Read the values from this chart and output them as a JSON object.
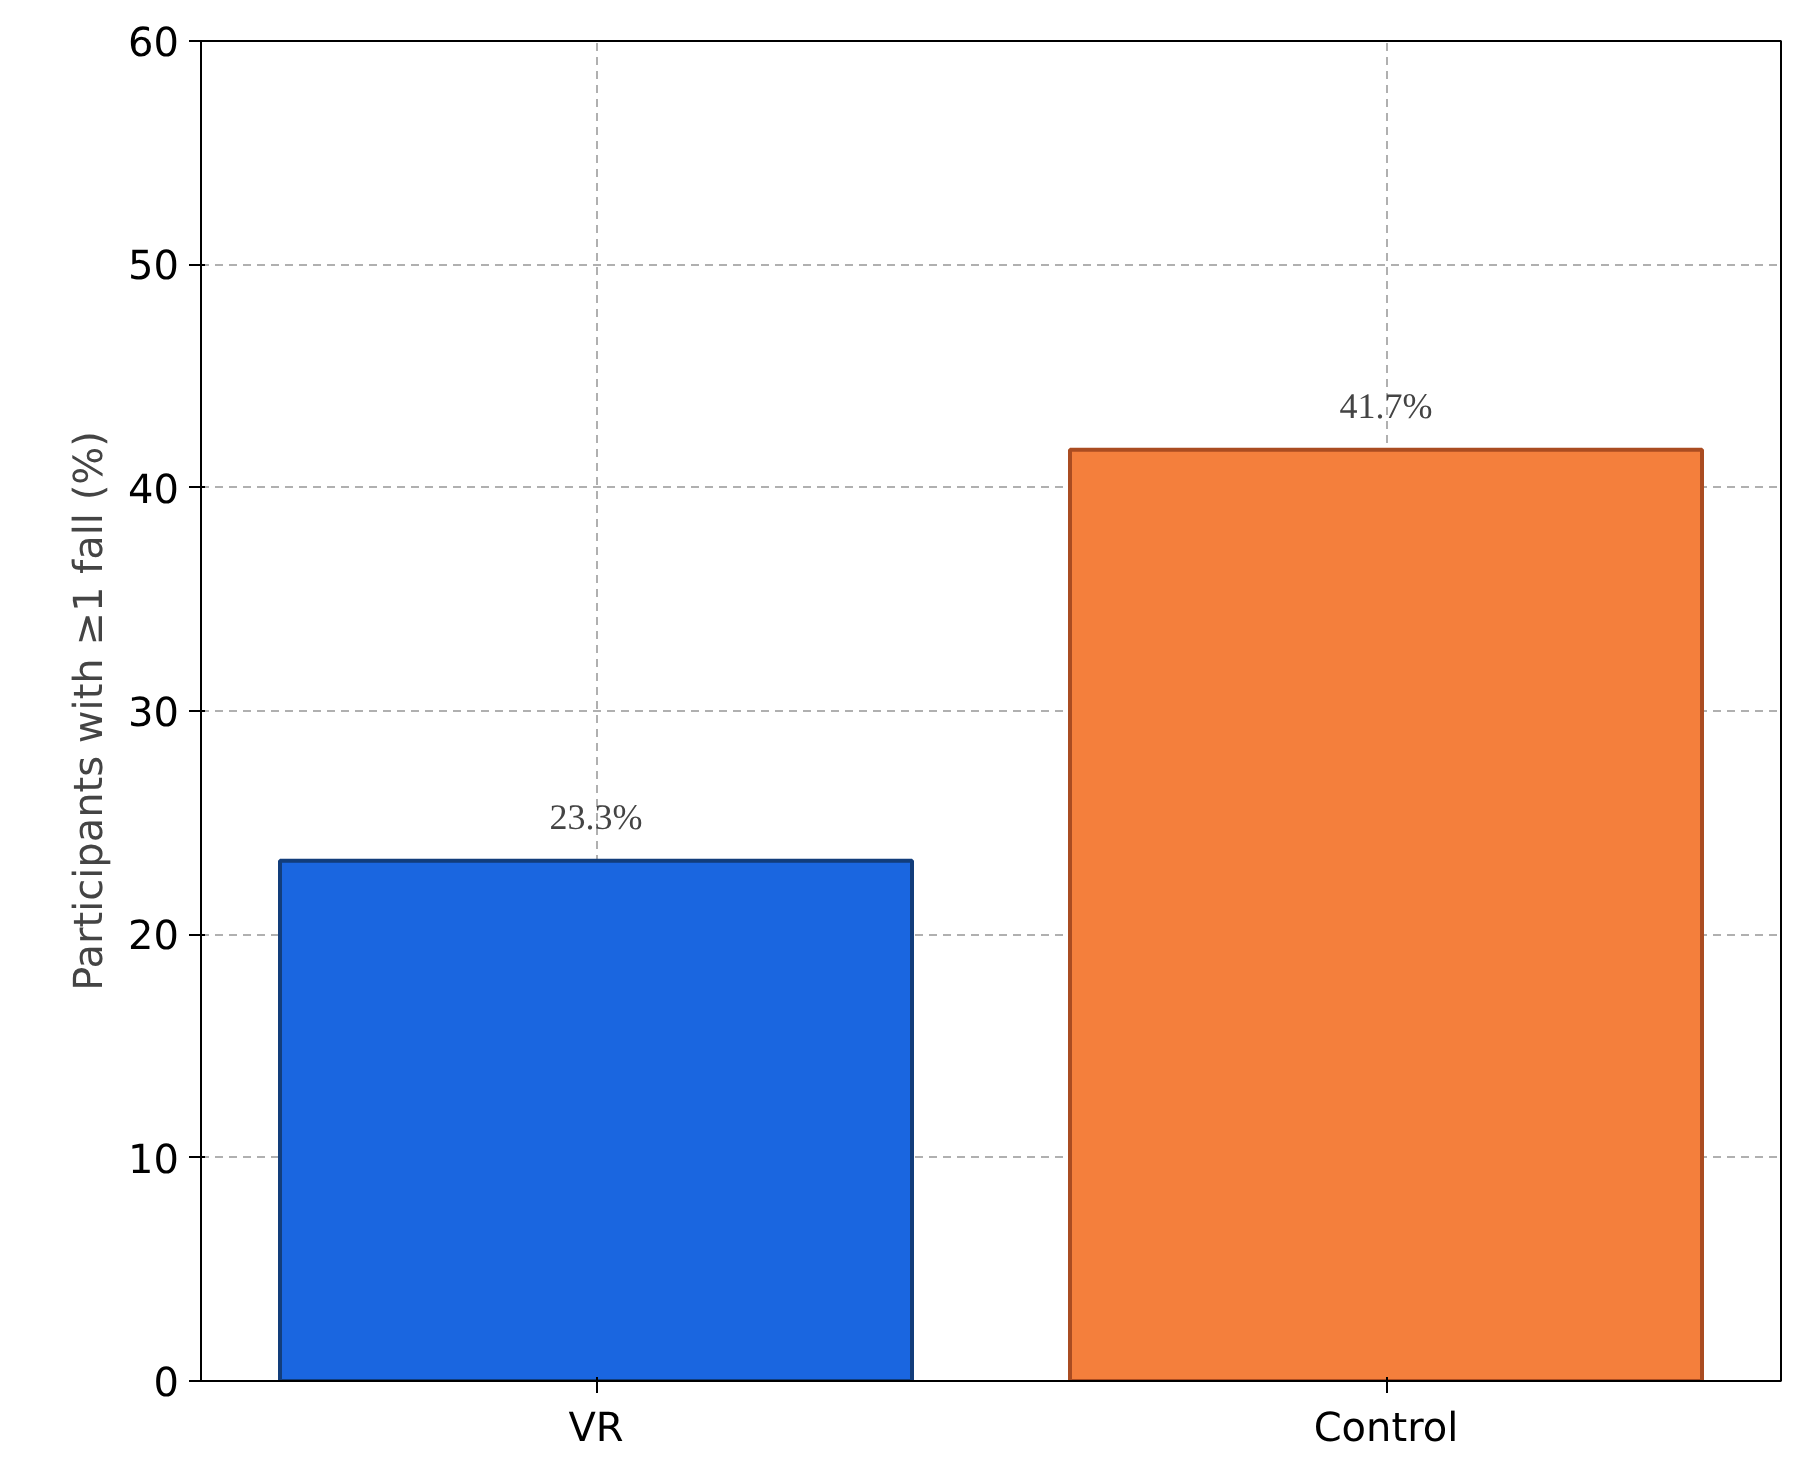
{
  "chart_data": {
    "type": "bar",
    "ylabel": "Participants with ≥1 fall (%)",
    "categories": [
      "VR",
      "Control"
    ],
    "values": [
      23.3,
      41.7
    ],
    "colors": [
      "#1a66e0",
      "#f47f3c"
    ],
    "value_labels": [
      "23.3%",
      "41.7%"
    ],
    "ylim": [
      0,
      60
    ],
    "yticks": [
      0,
      10,
      20,
      30,
      40,
      50,
      60
    ],
    "grid": true
  }
}
